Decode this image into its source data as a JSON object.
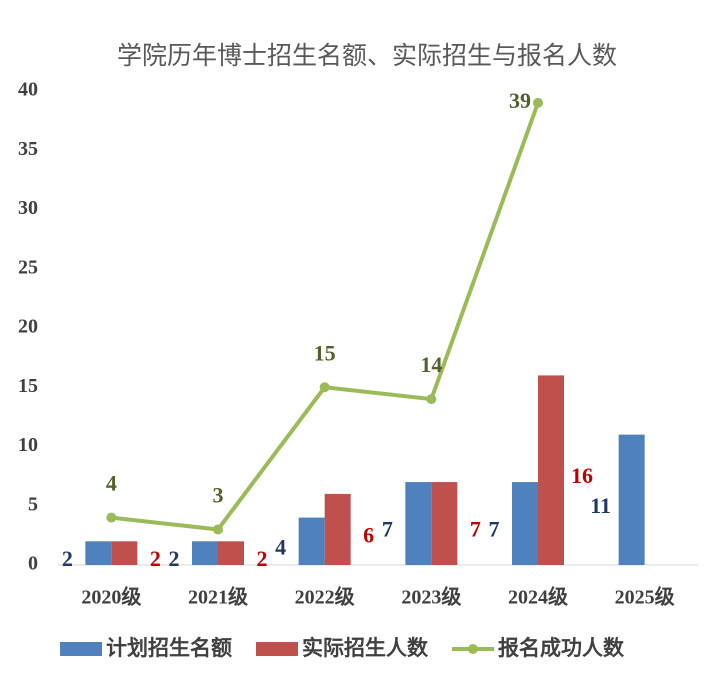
{
  "chart_data": {
    "type": "bar-line",
    "title": "学院历年博士招生名额、实际招生与报名人数",
    "categories": [
      "2020级",
      "2021级",
      "2022级",
      "2023级",
      "2024级",
      "2025级"
    ],
    "series": [
      {
        "name": "计划招生名额",
        "type": "bar",
        "color": "#4f81bd",
        "label_color": "#1f3864",
        "values": [
          2,
          2,
          4,
          7,
          7,
          11
        ]
      },
      {
        "name": "实际招生人数",
        "type": "bar",
        "color": "#c0504d",
        "label_color": "#c00000",
        "values": [
          2,
          2,
          6,
          7,
          16,
          null
        ]
      },
      {
        "name": "报名成功人数",
        "type": "line",
        "color": "#9bbb59",
        "label_color": "#4f6228",
        "values": [
          4,
          3,
          15,
          14,
          39,
          null
        ]
      }
    ],
    "ylim": [
      0,
      40
    ],
    "yticks": [
      0,
      5,
      10,
      15,
      20,
      25,
      30,
      35,
      40
    ],
    "grid": false
  }
}
